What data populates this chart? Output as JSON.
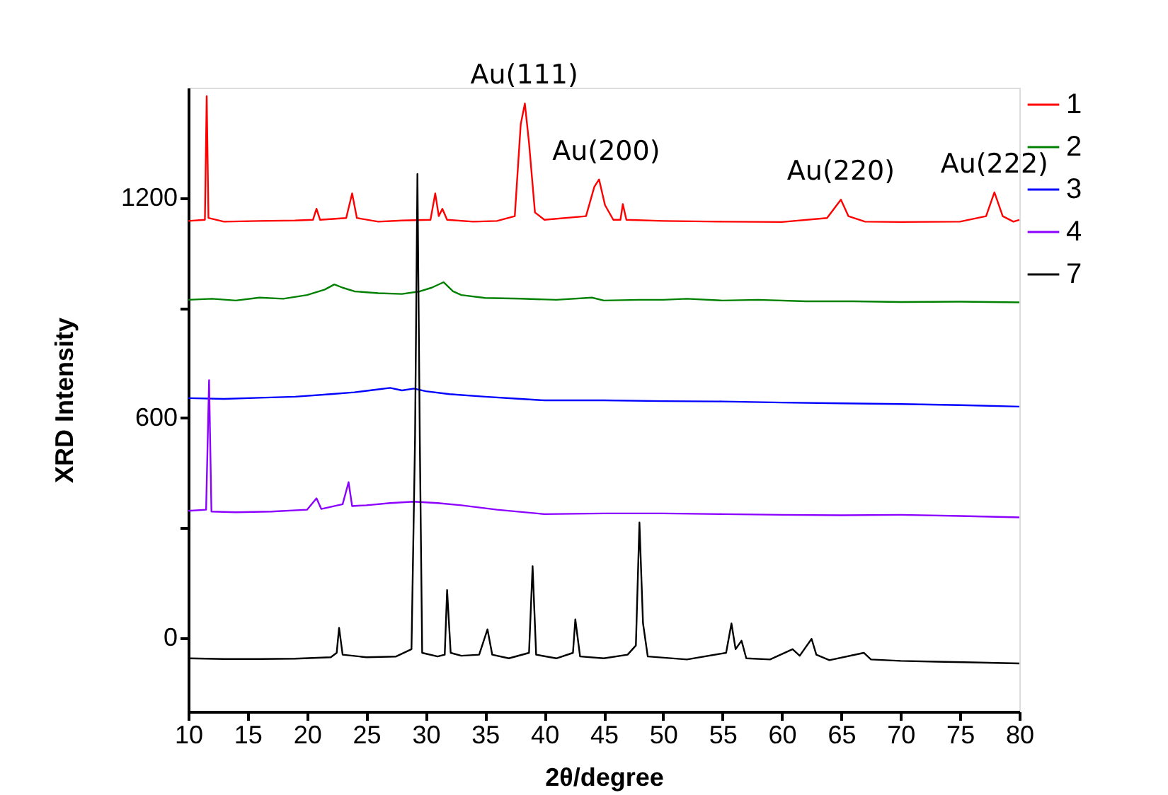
{
  "chart_data": {
    "type": "line",
    "xlabel": "2θ/degree",
    "ylabel": "XRD Intensity",
    "xlim": [
      10,
      80
    ],
    "ylim": [
      -200,
      1500
    ],
    "xticks": [
      10,
      15,
      20,
      25,
      30,
      35,
      40,
      45,
      50,
      55,
      60,
      65,
      70,
      75,
      80
    ],
    "yticks": [
      0,
      {
        "value": 300,
        "label": null
      },
      600,
      {
        "value": 900,
        "label": null
      },
      1200
    ],
    "grid": false,
    "legend": "top right",
    "marker": "none",
    "line_style": "solid",
    "annotations": [
      {
        "text": "Au(111)",
        "x": 38.3,
        "y": 1457
      },
      {
        "text": "Au(200)",
        "x": 45.2,
        "y": 1250
      },
      {
        "text": "Au(220)",
        "x": 64.97,
        "y": 1195
      },
      {
        "text": "Au(222)",
        "x": 77.9,
        "y": 1215
      }
    ],
    "series": [
      {
        "name": "1",
        "color": "#ff0000",
        "x": [
          10,
          11.4,
          11.55,
          11.7,
          13,
          16,
          19,
          20.5,
          20.8,
          21.1,
          23.3,
          23.8,
          24.2,
          26,
          28,
          30.4,
          30.8,
          31.1,
          31.4,
          31.8,
          34,
          36,
          37.5,
          38,
          38.35,
          38.7,
          39.2,
          40,
          43.5,
          44.2,
          44.6,
          45.1,
          45.8,
          46.4,
          46.6,
          46.9,
          50,
          55,
          60,
          63.8,
          64.97,
          65.6,
          67,
          70,
          75,
          77.2,
          77.9,
          78.6,
          79.5,
          80
        ],
        "values": [
          1137,
          1140,
          1477,
          1145,
          1135,
          1137,
          1138,
          1140,
          1170,
          1140,
          1145,
          1212,
          1145,
          1135,
          1138,
          1140,
          1212,
          1150,
          1170,
          1140,
          1135,
          1137,
          1150,
          1400,
          1457,
          1350,
          1160,
          1140,
          1150,
          1230,
          1250,
          1180,
          1140,
          1140,
          1183,
          1140,
          1137,
          1135,
          1134,
          1145,
          1195,
          1150,
          1135,
          1134,
          1135,
          1150,
          1215,
          1150,
          1135,
          1140
        ]
      },
      {
        "name": "2",
        "color": "#008000",
        "x": [
          10,
          12,
          14,
          16,
          18,
          20,
          21.5,
          22.3,
          23,
          24,
          26,
          28,
          29.5,
          30.5,
          31.5,
          32.3,
          33,
          35,
          38,
          41,
          44,
          45,
          48,
          50,
          52,
          55,
          58,
          62,
          66,
          70,
          75,
          80
        ],
        "values": [
          922,
          925,
          920,
          928,
          925,
          935,
          950,
          964,
          955,
          945,
          940,
          938,
          945,
          955,
          970,
          945,
          935,
          927,
          925,
          922,
          928,
          920,
          922,
          922,
          925,
          920,
          922,
          918,
          918,
          916,
          917,
          915
        ]
      },
      {
        "name": "3",
        "color": "#0000ff",
        "x": [
          10,
          13,
          16,
          19,
          22,
          24,
          26,
          27,
          28,
          29,
          30,
          32,
          35,
          38,
          40,
          45,
          50,
          55,
          60,
          65,
          70,
          75,
          80
        ],
        "values": [
          654,
          652,
          655,
          658,
          665,
          670,
          678,
          682,
          675,
          680,
          673,
          665,
          658,
          652,
          648,
          648,
          646,
          645,
          642,
          640,
          638,
          635,
          631
        ]
      },
      {
        "name": "4",
        "color": "#8b00ff",
        "x": [
          10,
          11.5,
          11.75,
          11.95,
          14,
          17,
          20,
          20.8,
          21.2,
          23,
          23.5,
          23.8,
          25,
          27,
          29,
          31,
          33,
          36,
          40,
          45,
          50,
          55,
          60,
          65,
          70,
          75,
          80
        ],
        "values": [
          347,
          350,
          703,
          345,
          343,
          345,
          350,
          381,
          352,
          365,
          425,
          360,
          362,
          368,
          372,
          368,
          362,
          350,
          338,
          340,
          340,
          338,
          336,
          335,
          336,
          333,
          329
        ]
      },
      {
        "name": "7",
        "color": "#000000",
        "x": [
          10,
          13,
          16,
          19,
          22,
          22.5,
          22.7,
          23,
          25,
          27.5,
          28.8,
          29.1,
          29.3,
          29.5,
          29.7,
          31,
          31.6,
          31.8,
          32.1,
          33,
          34.5,
          35.2,
          35.6,
          37,
          38.7,
          39,
          39.3,
          41,
          42.4,
          42.6,
          43,
          45,
          47,
          47.7,
          48,
          48.3,
          48.7,
          52,
          55.3,
          55.75,
          56.1,
          56.6,
          57,
          59,
          60.9,
          61.5,
          62.5,
          62.9,
          64,
          66.9,
          67.5,
          70,
          73,
          76,
          80
        ],
        "values": [
          -55,
          -57,
          -57,
          -56,
          -52,
          -40,
          28,
          -45,
          -52,
          -50,
          -30,
          544,
          1265,
          544,
          -40,
          -50,
          -45,
          131,
          -40,
          -48,
          -45,
          24,
          -45,
          -55,
          -40,
          196,
          -45,
          -55,
          -40,
          51,
          -50,
          -55,
          -45,
          -20,
          315,
          41,
          -50,
          -58,
          -40,
          40,
          -30,
          -7,
          -55,
          -58,
          -30,
          -48,
          -2,
          -45,
          -60,
          -40,
          -58,
          -62,
          -64,
          -66,
          -69
        ]
      }
    ]
  }
}
